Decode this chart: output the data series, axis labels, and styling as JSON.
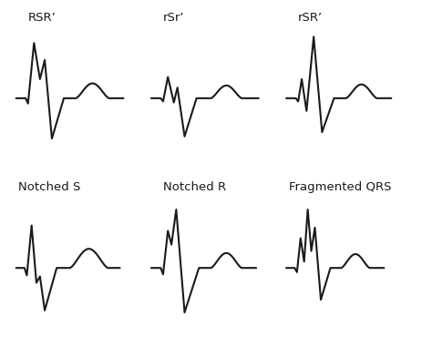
{
  "background": "#ffffff",
  "line_color": "#1a1a1a",
  "line_width": 1.5,
  "labels": [
    "RSR’",
    "rSr’",
    "rSR’",
    "Notched S",
    "Notched R",
    "Fragmented QRS"
  ],
  "label_fontsize": 9.5,
  "figsize": [
    4.74,
    3.81
  ],
  "dpi": 100
}
